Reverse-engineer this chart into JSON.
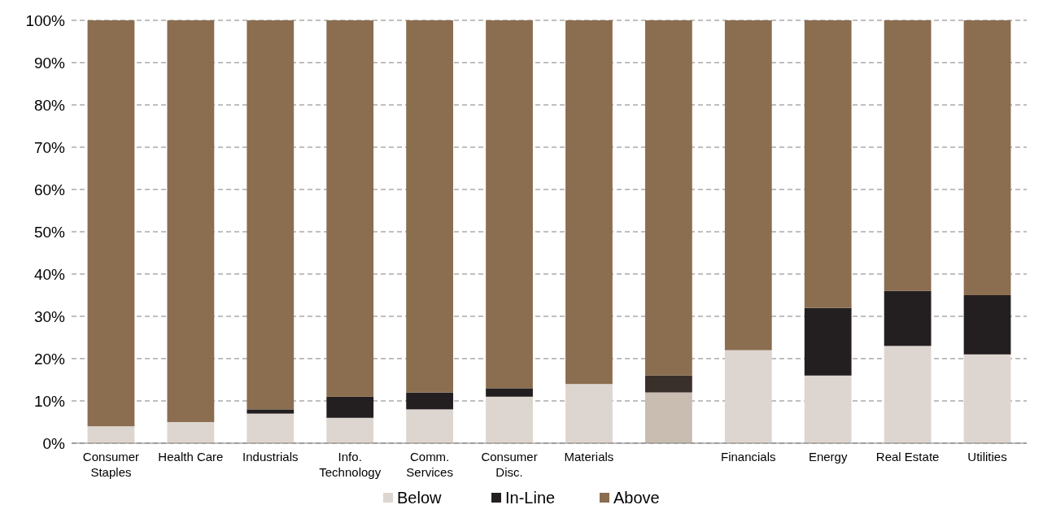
{
  "chart_data": {
    "type": "bar",
    "stacked": true,
    "categories": [
      "Consumer Staples",
      "Health Care",
      "Industrials",
      "Info. Technology",
      "Comm. Services",
      "Consumer Disc.",
      "Materials",
      null,
      "Financials",
      "Energy",
      "Real Estate",
      "Utilities"
    ],
    "series": [
      {
        "name": "Below",
        "color": "#ddd5cf",
        "colors": [
          "#ddd5cf",
          "#ddd5cf",
          "#ddd5cf",
          "#ddd5cf",
          "#ddd5cf",
          "#ddd5cf",
          "#ddd5cf",
          "#c9bdb2",
          "#ddd5cf",
          "#ddd5cf",
          "#ddd5cf",
          "#ddd5cf"
        ],
        "values": [
          4,
          5,
          7,
          6,
          8,
          11,
          14,
          12,
          22,
          16,
          23,
          21
        ]
      },
      {
        "name": "In-Line",
        "color": "#231f20",
        "colors": [
          "#231f20",
          "#231f20",
          "#231f20",
          "#231f20",
          "#231f20",
          "#231f20",
          "#231f20",
          "#3a302b",
          "#231f20",
          "#231f20",
          "#231f20",
          "#231f20"
        ],
        "values": [
          0,
          0,
          1,
          5,
          4,
          2,
          0,
          4,
          0,
          16,
          13,
          14
        ]
      },
      {
        "name": "Above",
        "color": "#8b6d50",
        "colors": [
          "#8b6d50",
          "#8b6d50",
          "#8b6d50",
          "#8b6d50",
          "#8b6d50",
          "#8b6d50",
          "#8b6d50",
          "#8b6d50",
          "#8b6d50",
          "#8b6d50",
          "#8b6d50",
          "#8b6d50"
        ],
        "values": [
          96,
          95,
          92,
          89,
          88,
          87,
          86,
          84,
          78,
          68,
          64,
          65
        ]
      }
    ],
    "ylim": [
      0,
      100
    ],
    "yticks": [
      {
        "value": 0,
        "label": "0%"
      },
      {
        "value": 10,
        "label": "10%"
      },
      {
        "value": 20,
        "label": "20%"
      },
      {
        "value": 30,
        "label": "30%"
      },
      {
        "value": 40,
        "label": "40%"
      },
      {
        "value": 50,
        "label": "50%"
      },
      {
        "value": 60,
        "label": "60%"
      },
      {
        "value": 70,
        "label": "70%"
      },
      {
        "value": 80,
        "label": "80%"
      },
      {
        "value": 90,
        "label": "90%"
      },
      {
        "value": 100,
        "label": "100%"
      }
    ],
    "grid": "y",
    "legend": "bottom"
  }
}
